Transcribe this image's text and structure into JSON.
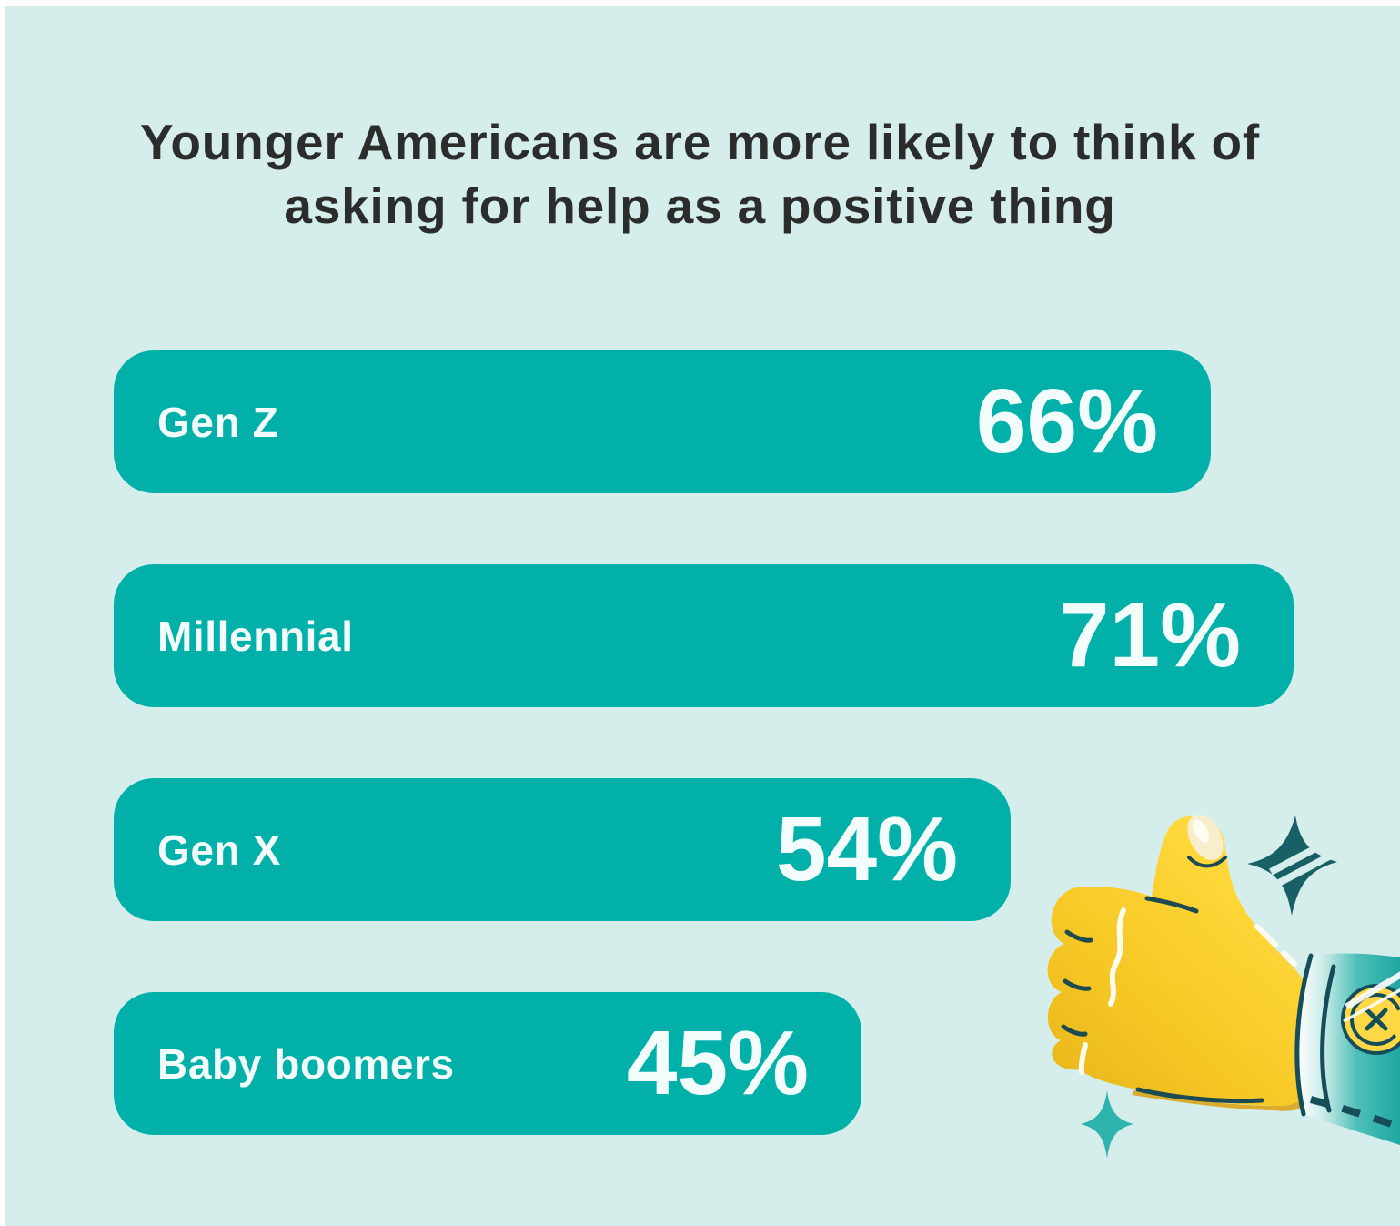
{
  "title": "Younger Americans are more likely to think of asking for help as a positive thing",
  "chart_data": {
    "type": "bar",
    "orientation": "horizontal",
    "title": "Younger Americans are more likely to think of asking for help as a positive thing",
    "categories": [
      "Gen Z",
      "Millennial",
      "Gen X",
      "Baby boomers"
    ],
    "values": [
      66,
      71,
      54,
      45
    ],
    "unit": "%",
    "xlim": [
      0,
      100
    ],
    "grid": false,
    "legend": false,
    "value_labels_position": "inside-right",
    "category_labels_position": "inside-left",
    "bars": [
      {
        "label": "Gen Z",
        "value": 66,
        "value_label": "66%"
      },
      {
        "label": "Millennial",
        "value": 71,
        "value_label": "71%"
      },
      {
        "label": "Gen X",
        "value": 54,
        "value_label": "54%"
      },
      {
        "label": "Baby boomers",
        "value": 45,
        "value_label": "45%"
      }
    ]
  },
  "colors": {
    "background": "#d5eeec",
    "bar": "#02b0aa",
    "bar_text": "#f2fcfb",
    "title_text": "#2b2d2d",
    "hand_yellow": "#fdd335",
    "hand_gold": "#e3ad15",
    "sleeve_teal": "#28aca7",
    "outline_dark": "#1c4b52",
    "sparkle_dark": "#185f66",
    "sparkle_light": "#2db4ad",
    "button_yellow": "#ffd845"
  },
  "illustration": {
    "name": "thumbs-up hand with teal sleeve, button and sparkles"
  }
}
